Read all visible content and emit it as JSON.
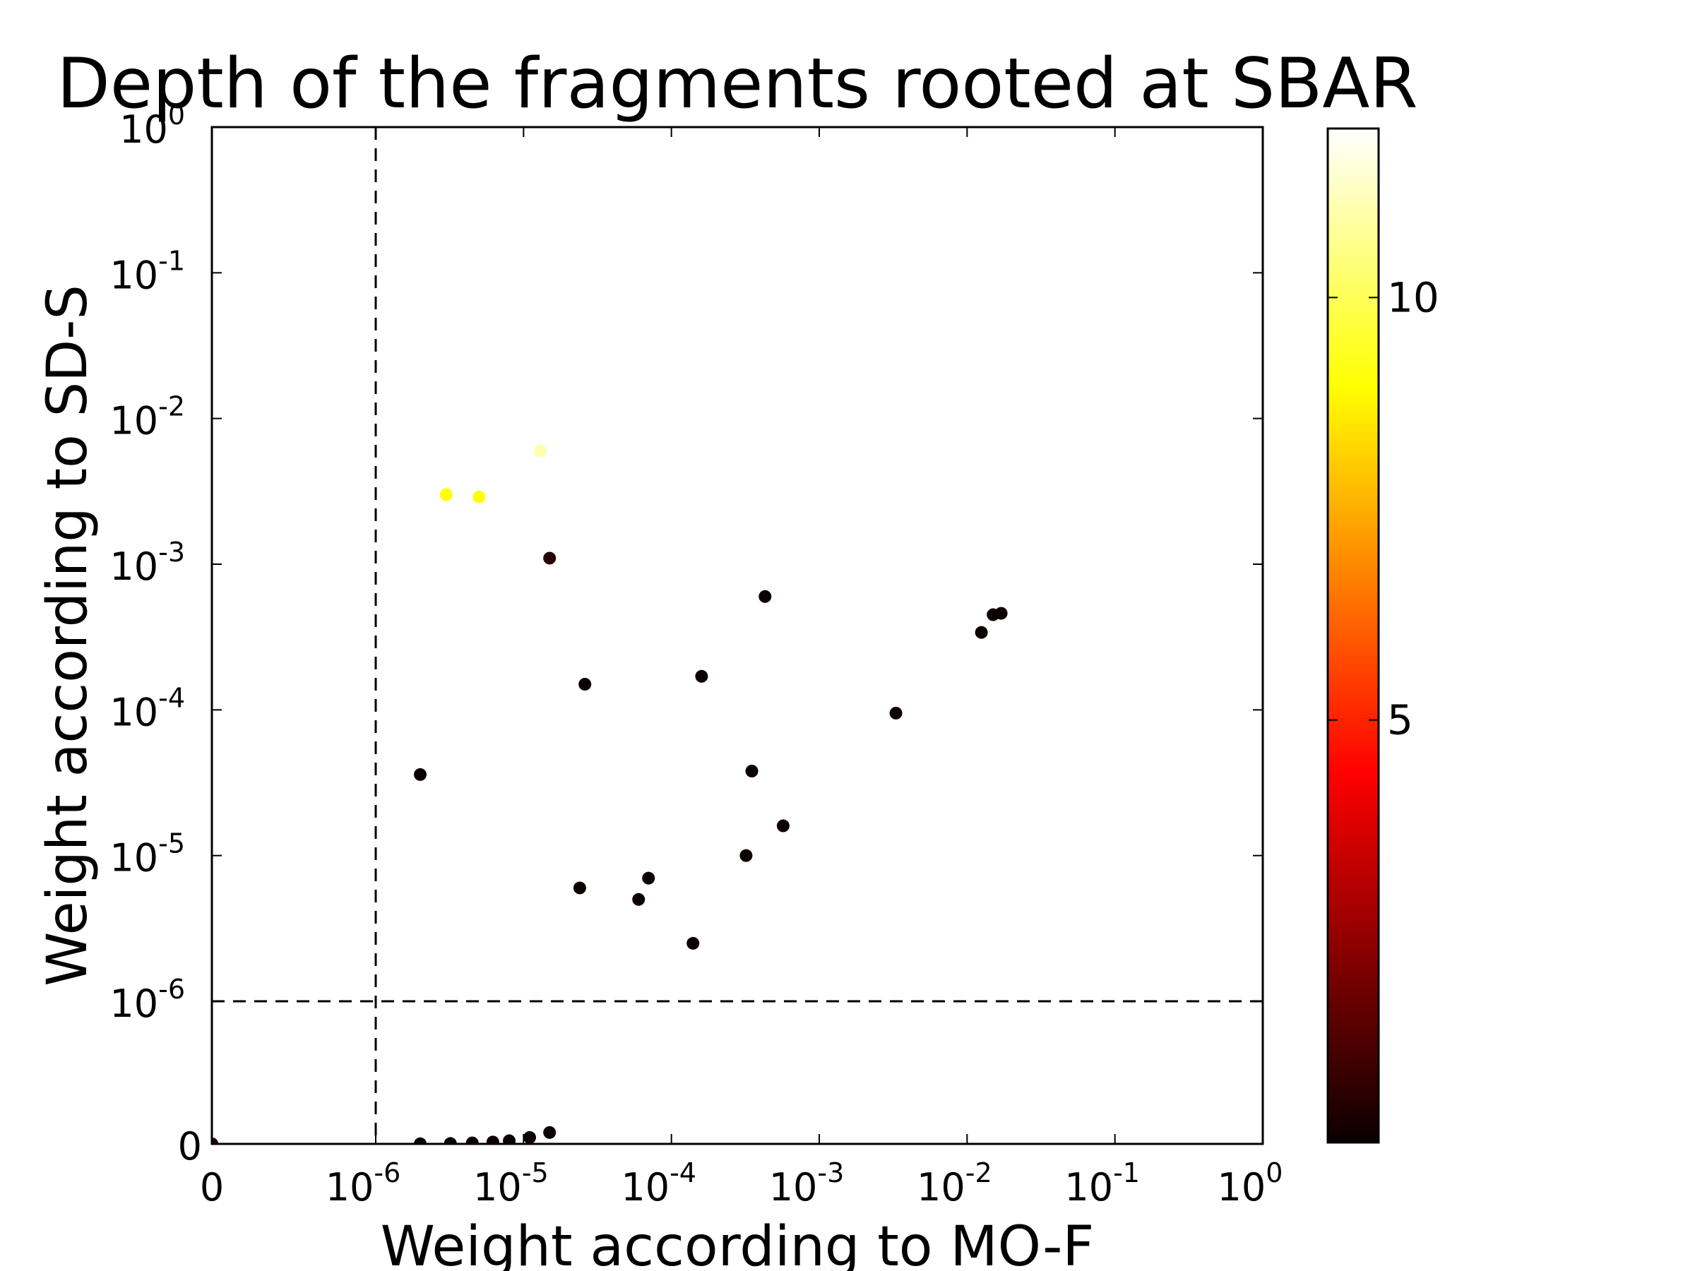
{
  "chart_data": {
    "type": "scatter",
    "title": "Depth of the fragments rooted at SBAR",
    "xlabel": "Weight according to MO-F",
    "ylabel": "Weight according to SD-S",
    "x_scale": "symlog",
    "y_scale": "symlog",
    "xlim": [
      0,
      1
    ],
    "ylim": [
      0,
      1
    ],
    "x_ticks": [
      {
        "value": 0,
        "base": "0",
        "exp": ""
      },
      {
        "value": 1e-06,
        "base": "10",
        "exp": "-6"
      },
      {
        "value": 1e-05,
        "base": "10",
        "exp": "-5"
      },
      {
        "value": 0.0001,
        "base": "10",
        "exp": "-4"
      },
      {
        "value": 0.001,
        "base": "10",
        "exp": "-3"
      },
      {
        "value": 0.01,
        "base": "10",
        "exp": "-2"
      },
      {
        "value": 0.1,
        "base": "10",
        "exp": "-1"
      },
      {
        "value": 1,
        "base": "10",
        "exp": "0"
      }
    ],
    "y_ticks": [
      {
        "value": 0,
        "base": "0",
        "exp": ""
      },
      {
        "value": 1e-06,
        "base": "10",
        "exp": "-6"
      },
      {
        "value": 1e-05,
        "base": "10",
        "exp": "-5"
      },
      {
        "value": 0.0001,
        "base": "10",
        "exp": "-4"
      },
      {
        "value": 0.001,
        "base": "10",
        "exp": "-3"
      },
      {
        "value": 0.01,
        "base": "10",
        "exp": "-2"
      },
      {
        "value": 0.1,
        "base": "10",
        "exp": "-1"
      },
      {
        "value": 1,
        "base": "10",
        "exp": "0"
      }
    ],
    "reference_lines": {
      "x": 1e-06,
      "y": 1e-06,
      "style": "dashed"
    },
    "grid": false,
    "colorbar": {
      "colormap": "hot",
      "range": [
        0,
        12
      ],
      "ticks": [
        {
          "value": 5,
          "label": "5"
        },
        {
          "value": 10,
          "label": "10"
        }
      ]
    },
    "points": [
      [
        1e-09,
        0,
        0.5
      ],
      [
        2e-06,
        3.6e-05,
        0
      ],
      [
        2e-06,
        1e-09,
        0
      ],
      [
        3.2e-06,
        3e-09,
        0
      ],
      [
        4.5e-06,
        7e-09,
        0
      ],
      [
        6.2e-06,
        1.3e-08,
        0
      ],
      [
        8e-06,
        2.2e-08,
        0
      ],
      [
        1.1e-05,
        4.5e-08,
        0
      ],
      [
        1.5e-05,
        8e-08,
        0
      ],
      [
        2.6e-05,
        0.00015,
        0
      ],
      [
        2.4e-05,
        6e-06,
        0
      ],
      [
        0.00016,
        0.00017,
        0
      ],
      [
        0.00043,
        0.0006,
        0
      ],
      [
        0.00035,
        3.8e-05,
        0
      ],
      [
        0.00057,
        1.6e-05,
        0
      ],
      [
        0.0033,
        9.5e-05,
        0
      ],
      [
        0.0125,
        0.00034,
        0
      ],
      [
        0.015,
        0.00045,
        0
      ],
      [
        0.017,
        0.00046,
        0
      ],
      [
        6e-05,
        5e-06,
        0
      ],
      [
        7e-05,
        7e-06,
        0
      ],
      [
        0.00014,
        2.5e-06,
        0
      ],
      [
        0.00032,
        1e-05,
        0
      ],
      [
        1.5e-05,
        0.0011,
        0.5
      ],
      [
        1.3e-05,
        0.006,
        11
      ],
      [
        3e-06,
        0.003,
        9
      ],
      [
        5e-06,
        0.0029,
        9
      ]
    ]
  }
}
